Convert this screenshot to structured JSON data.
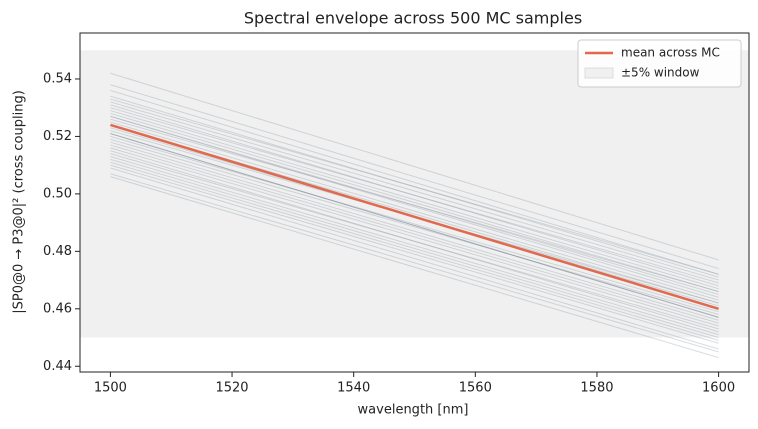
{
  "chart_data": {
    "type": "line",
    "title": "Spectral envelope across 500 MC samples",
    "x_label": "wavelength [nm]",
    "y_label": "|SP0@0 → P3@0|²  (cross coupling)",
    "x": [
      1500,
      1600
    ],
    "xlim": [
      1495,
      1605
    ],
    "xticks": [
      1500,
      1520,
      1540,
      1560,
      1580,
      1600
    ],
    "ylim": [
      0.438,
      0.556
    ],
    "yticks": [
      0.44,
      0.46,
      0.48,
      {
        "value": 0.5,
        "label": "0.50"
      },
      0.52,
      0.54
    ],
    "band": {
      "name": "±5% window",
      "range": [
        0.45,
        0.55
      ],
      "color": "#f0f0f0"
    },
    "samples": {
      "color": "#7f8f9a",
      "values": [
        [
          0.542,
          0.477
        ],
        [
          0.538,
          0.474
        ],
        [
          0.536,
          0.472
        ],
        [
          0.534,
          0.471
        ],
        [
          0.533,
          0.472
        ],
        [
          0.532,
          0.47
        ],
        [
          0.531,
          0.468
        ],
        [
          0.53,
          0.469
        ],
        [
          0.529,
          0.467
        ],
        [
          0.528,
          0.466
        ],
        [
          0.527,
          0.465
        ],
        [
          0.527,
          0.464
        ],
        [
          0.526,
          0.466
        ],
        [
          0.525,
          0.463
        ],
        [
          0.524,
          0.462
        ],
        [
          0.523,
          0.461
        ],
        [
          0.522,
          0.462
        ],
        [
          0.521,
          0.457
        ],
        [
          0.521,
          0.457
        ],
        [
          0.521,
          0.457
        ],
        [
          0.52,
          0.459
        ],
        [
          0.519,
          0.458
        ],
        [
          0.518,
          0.456
        ],
        [
          0.517,
          0.455
        ],
        [
          0.516,
          0.454
        ],
        [
          0.515,
          0.452
        ],
        [
          0.514,
          0.453
        ],
        [
          0.513,
          0.451
        ],
        [
          0.512,
          0.45
        ],
        [
          0.511,
          0.449
        ],
        [
          0.51,
          0.448
        ],
        [
          0.509,
          0.446
        ],
        [
          0.507,
          0.445
        ],
        [
          0.506,
          0.443
        ]
      ]
    },
    "series": [
      {
        "name": "mean across MC",
        "color": "#e06a4e",
        "values": [
          0.524,
          0.46
        ]
      }
    ]
  }
}
